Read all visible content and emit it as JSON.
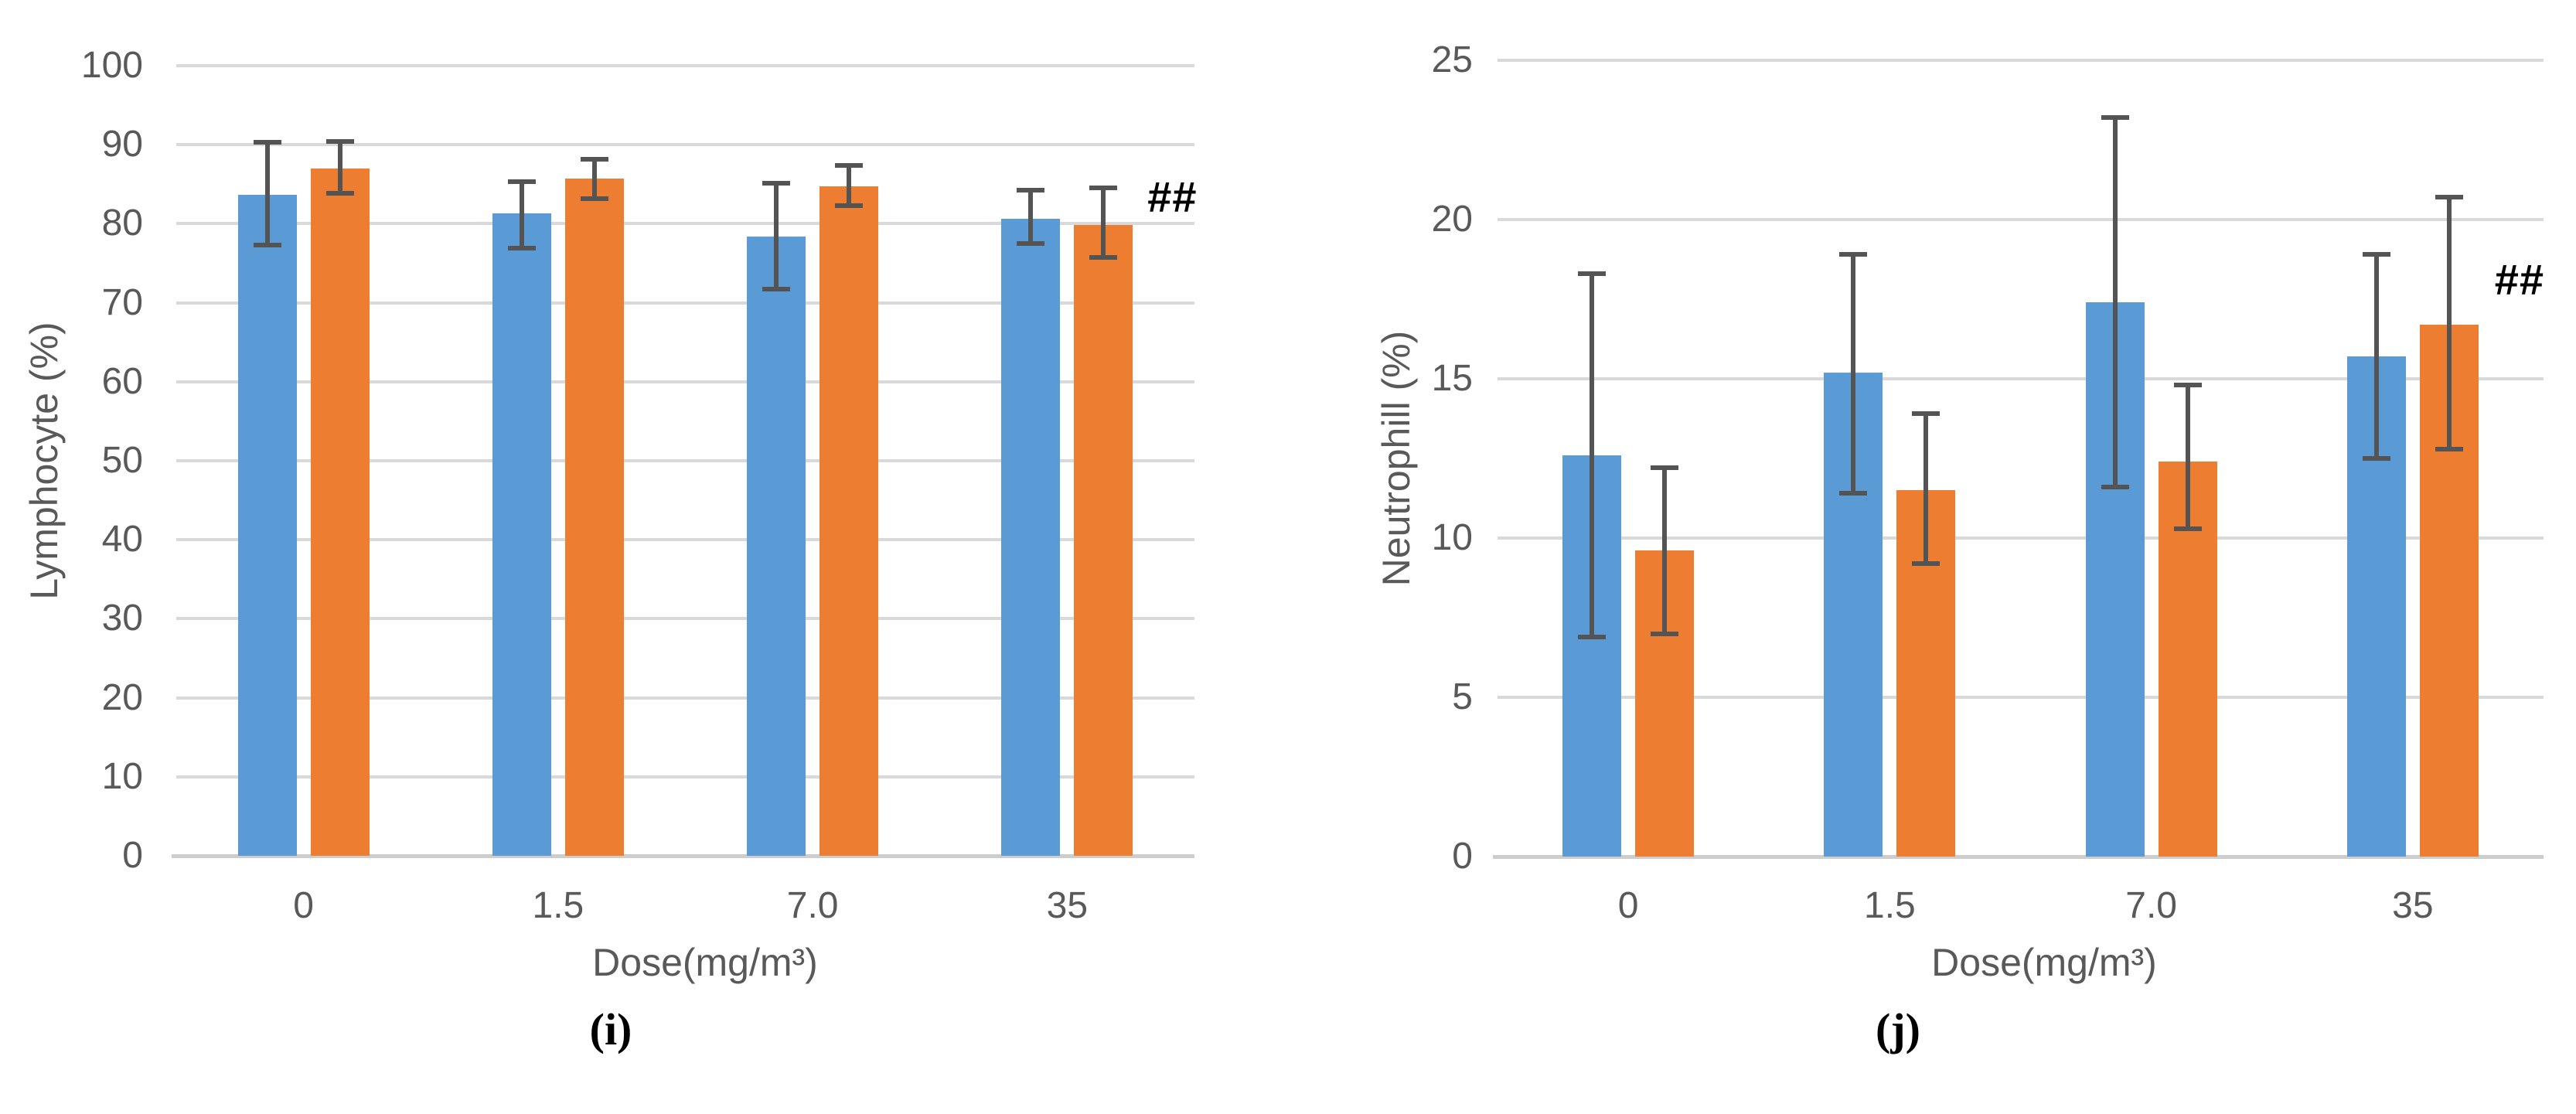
{
  "figure": {
    "background": "#ffffff"
  },
  "palette": {
    "series1": "#5B9BD5",
    "series2": "#ED7D31",
    "gridline": "#D9D9D9",
    "baseline": "#CDCDCD",
    "axis_text": "#595959",
    "error_bar": "#545454",
    "annotation_text": "#000000"
  },
  "chart_data": [
    {
      "type": "bar",
      "panel_label": "(i)",
      "xlabel": "Dose(mg/m³)",
      "ylabel": "Lymphocyte (%)",
      "categories": [
        "0",
        "1.5",
        "7.0",
        "35"
      ],
      "y_axis": {
        "min": 0,
        "max": 100,
        "step": 10,
        "ticks": [
          "0",
          "10",
          "20",
          "30",
          "40",
          "50",
          "60",
          "70",
          "80",
          "90",
          "100"
        ]
      },
      "grid": true,
      "legend": "none",
      "series": [
        {
          "name": "series1-blue",
          "color": "#5B9BD5",
          "values": [
            83.7,
            81.3,
            78.4,
            80.6
          ],
          "error_high": [
            90.3,
            85.3,
            85.1,
            84.2
          ],
          "error_low": [
            77.3,
            76.9,
            71.7,
            77.5
          ]
        },
        {
          "name": "series2-orange",
          "color": "#ED7D31",
          "values": [
            87.0,
            85.7,
            84.7,
            79.8
          ],
          "error_high": [
            90.4,
            88.2,
            87.4,
            84.5
          ],
          "error_low": [
            83.9,
            83.2,
            82.3,
            75.7
          ]
        }
      ],
      "annotation": {
        "text": "##",
        "category_index": 3,
        "value": 83.4
      }
    },
    {
      "type": "bar",
      "panel_label": "(j)",
      "xlabel": "Dose(mg/m³)",
      "ylabel": "Neutrophill (%)",
      "categories": [
        "0",
        "1.5",
        "7.0",
        "35"
      ],
      "y_axis": {
        "min": 0,
        "max": 25,
        "step": 5,
        "ticks": [
          "0",
          "5",
          "10",
          "15",
          "20",
          "25"
        ]
      },
      "grid": true,
      "legend": "none",
      "series": [
        {
          "name": "series1-blue",
          "color": "#5B9BD5",
          "values": [
            12.6,
            15.2,
            17.4,
            15.7
          ],
          "error_high": [
            18.3,
            18.9,
            23.2,
            18.9
          ],
          "error_low": [
            6.9,
            11.4,
            11.6,
            12.5
          ]
        },
        {
          "name": "series2-orange",
          "color": "#ED7D31",
          "values": [
            9.6,
            11.5,
            12.4,
            16.7
          ],
          "error_high": [
            12.2,
            13.9,
            14.8,
            20.7
          ],
          "error_low": [
            7.0,
            9.2,
            10.3,
            12.8
          ]
        }
      ],
      "annotation": {
        "text": "##",
        "category_index": 3,
        "value": 18.1
      }
    }
  ]
}
